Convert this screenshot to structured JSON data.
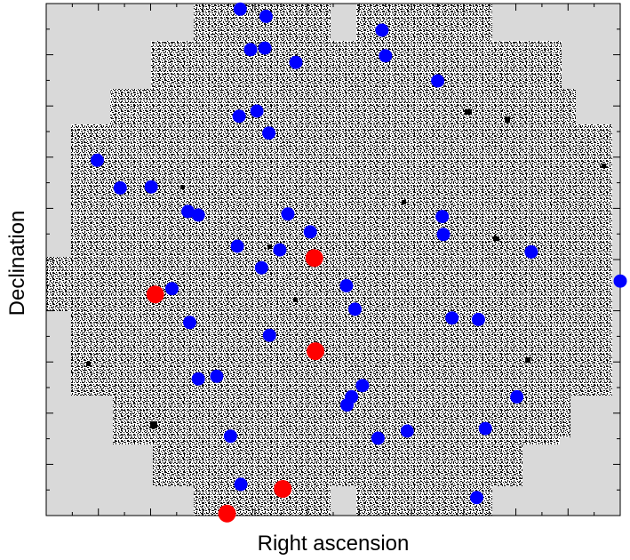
{
  "chart_data": {
    "type": "scatter",
    "title": "",
    "xlabel": "Right ascension",
    "ylabel": "Declination",
    "xlim": [
      0,
      1
    ],
    "ylim": [
      0,
      1
    ],
    "grid": false,
    "legend": "none",
    "background_image": "survey-field-mosaic",
    "series": [
      {
        "color": "#0000ff",
        "points": [
          [
            0.338,
            0.989
          ],
          [
            0.383,
            0.975
          ],
          [
            0.356,
            0.91
          ],
          [
            0.381,
            0.913
          ],
          [
            0.435,
            0.885
          ],
          [
            0.585,
            0.948
          ],
          [
            0.591,
            0.898
          ],
          [
            0.682,
            0.849
          ],
          [
            0.336,
            0.78
          ],
          [
            0.367,
            0.79
          ],
          [
            0.388,
            0.747
          ],
          [
            0.089,
            0.694
          ],
          [
            0.129,
            0.64
          ],
          [
            0.183,
            0.642
          ],
          [
            0.247,
            0.594
          ],
          [
            0.265,
            0.587
          ],
          [
            0.421,
            0.589
          ],
          [
            0.69,
            0.584
          ],
          [
            0.692,
            0.549
          ],
          [
            0.46,
            0.554
          ],
          [
            0.333,
            0.526
          ],
          [
            0.407,
            0.519
          ],
          [
            0.845,
            0.515
          ],
          [
            0.375,
            0.484
          ],
          [
            0.523,
            0.449
          ],
          [
            0.219,
            0.443
          ],
          [
            1.0,
            0.458
          ],
          [
            0.538,
            0.403
          ],
          [
            0.707,
            0.386
          ],
          [
            0.753,
            0.383
          ],
          [
            0.25,
            0.377
          ],
          [
            0.389,
            0.352
          ],
          [
            0.297,
            0.272
          ],
          [
            0.265,
            0.267
          ],
          [
            0.551,
            0.254
          ],
          [
            0.532,
            0.232
          ],
          [
            0.524,
            0.216
          ],
          [
            0.82,
            0.232
          ],
          [
            0.765,
            0.17
          ],
          [
            0.629,
            0.165
          ],
          [
            0.578,
            0.151
          ],
          [
            0.321,
            0.155
          ],
          [
            0.339,
            0.061
          ],
          [
            0.75,
            0.035
          ]
        ]
      },
      {
        "color": "#ff0000",
        "points": [
          [
            0.467,
            0.503
          ],
          [
            0.19,
            0.432
          ],
          [
            0.469,
            0.321
          ],
          [
            0.412,
            0.052
          ],
          [
            0.315,
            0.004
          ]
        ]
      }
    ]
  }
}
